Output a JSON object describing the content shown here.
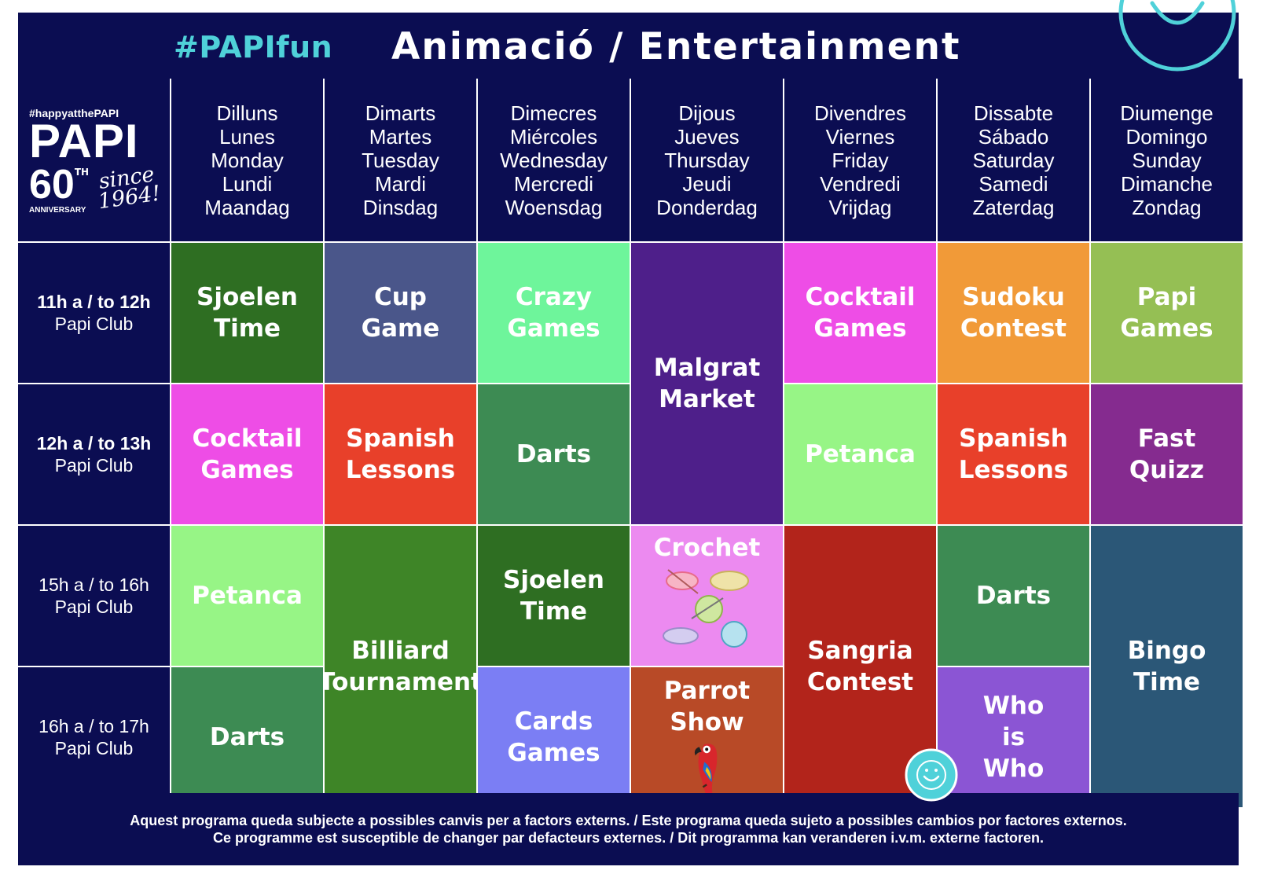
{
  "header": {
    "hashtag": "#PAPIfun",
    "title": "Animació / Entertainment"
  },
  "logo": {
    "tagline": "#happyatthePAPI",
    "name": "PAPI",
    "number": "60",
    "suffix": "TH",
    "since": "since",
    "year": "1964!",
    "anniversary": "ANNIVERSARY"
  },
  "days": [
    [
      "Dilluns",
      "Lunes",
      "Monday",
      "Lundi",
      "Maandag"
    ],
    [
      "Dimarts",
      "Martes",
      "Tuesday",
      "Mardi",
      "Dinsdag"
    ],
    [
      "Dimecres",
      "Miércoles",
      "Wednesday",
      "Mercredi",
      "Woensdag"
    ],
    [
      "Dijous",
      "Jueves",
      "Thursday",
      "Jeudi",
      "Donderdag"
    ],
    [
      "Divendres",
      "Viernes",
      "Friday",
      "Vendredi",
      "Vrijdag"
    ],
    [
      "Dissabte",
      "Sábado",
      "Saturday",
      "Samedi",
      "Zaterdag"
    ],
    [
      "Diumenge",
      "Domingo",
      "Sunday",
      "Dimanche",
      "Zondag"
    ]
  ],
  "times": [
    {
      "slot": "11h a / to 12h",
      "place": "Papi Club"
    },
    {
      "slot": "12h a / to 13h",
      "place": "Papi Club"
    },
    {
      "slot": "15h a / to 16h",
      "place": "Papi Club"
    },
    {
      "slot": "16h a / to 17h",
      "place": "Papi Club"
    }
  ],
  "activities": {
    "mon_1": {
      "l1": "Sjoelen",
      "l2": "Time",
      "color": "#2e6e22"
    },
    "tue_1": {
      "l1": "Cup",
      "l2": "Game",
      "color": "#4a568a"
    },
    "wed_1": {
      "l1": "Crazy",
      "l2": "Games",
      "color": "#6ef59b"
    },
    "thu_12": {
      "l1": "Malgrat",
      "l2": "Market",
      "color": "#4e1f8a"
    },
    "fri_1": {
      "l1": "Cocktail",
      "l2": "Games",
      "color": "#ee4de6"
    },
    "sat_1": {
      "l1": "Sudoku",
      "l2": "Contest",
      "color": "#f19a38"
    },
    "sun_1": {
      "l1": "Papi",
      "l2": "Games",
      "color": "#95bf54"
    },
    "mon_2": {
      "l1": "Cocktail",
      "l2": "Games",
      "color": "#ee4de6"
    },
    "tue_2": {
      "l1": "Spanish",
      "l2": "Lessons",
      "color": "#e8402a"
    },
    "wed_2": {
      "l1": "Darts",
      "color": "#3d8b53"
    },
    "fri_2": {
      "l1": "Petanca",
      "color": "#97f586"
    },
    "sat_2": {
      "l1": "Spanish",
      "l2": "Lessons",
      "color": "#e8402a"
    },
    "sun_2": {
      "l1": "Fast",
      "l2": "Quizz",
      "color": "#852b8f"
    },
    "mon_3": {
      "l1": "Petanca",
      "color": "#97f586"
    },
    "tue_34": {
      "l1": "Billiard",
      "l2": "Tournament",
      "color": "#3e8527"
    },
    "wed_3": {
      "l1": "Sjoelen",
      "l2": "Time",
      "color": "#2e6e22"
    },
    "thu_3": {
      "l1": "Crochet",
      "color": "#ec8af0"
    },
    "fri_34": {
      "l1": "Sangria",
      "l2": "Contest",
      "color": "#b2241b"
    },
    "sat_3": {
      "l1": "Darts",
      "color": "#3d8b53"
    },
    "sun_34": {
      "l1": "Bingo",
      "l2": "Time",
      "color": "#2b5777"
    },
    "mon_4": {
      "l1": "Darts",
      "color": "#3d8b53"
    },
    "wed_4": {
      "l1": "Cards",
      "l2": "Games",
      "color": "#7b7ef4"
    },
    "thu_4": {
      "l1": "Parrot Show",
      "color": "#b84a27"
    },
    "sat_4": {
      "l1": "Who",
      "l2": "is",
      "l3": "Who",
      "color": "#8b55d4"
    }
  },
  "footer": {
    "line1": "Aquest programa queda subjecte a possibles canvis per a factors externs. /  Este programa queda sujeto a possibles cambios por factores externos.",
    "line2": "Ce programme est susceptible de changer par defacteurs externes. / Dit programma kan veranderen i.v.m. externe factoren."
  },
  "colors": {
    "navy": "#0b0d52",
    "smiley": "#4fd1d9"
  }
}
